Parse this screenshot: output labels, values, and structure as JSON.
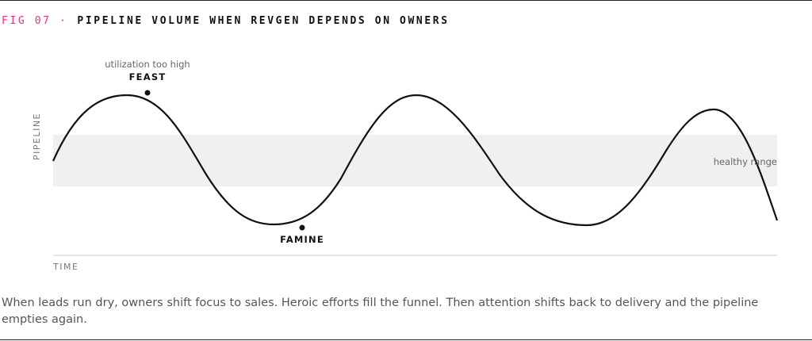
{
  "figure": {
    "label": "FIG 07 ·",
    "title": "PIPELINE VOLUME WHEN REVGEN DEPENDS ON OWNERS"
  },
  "axes": {
    "y": "PIPELINE",
    "x": "TIME"
  },
  "annotations": {
    "feast_note": "utilization too high",
    "feast": "FEAST",
    "famine": "FAMINE",
    "band": "healthy range"
  },
  "caption": "When leads run dry, owners shift focus to sales. Heroic efforts fill the funnel. Then attention shifts back to delivery and the pipeline empties again."
}
